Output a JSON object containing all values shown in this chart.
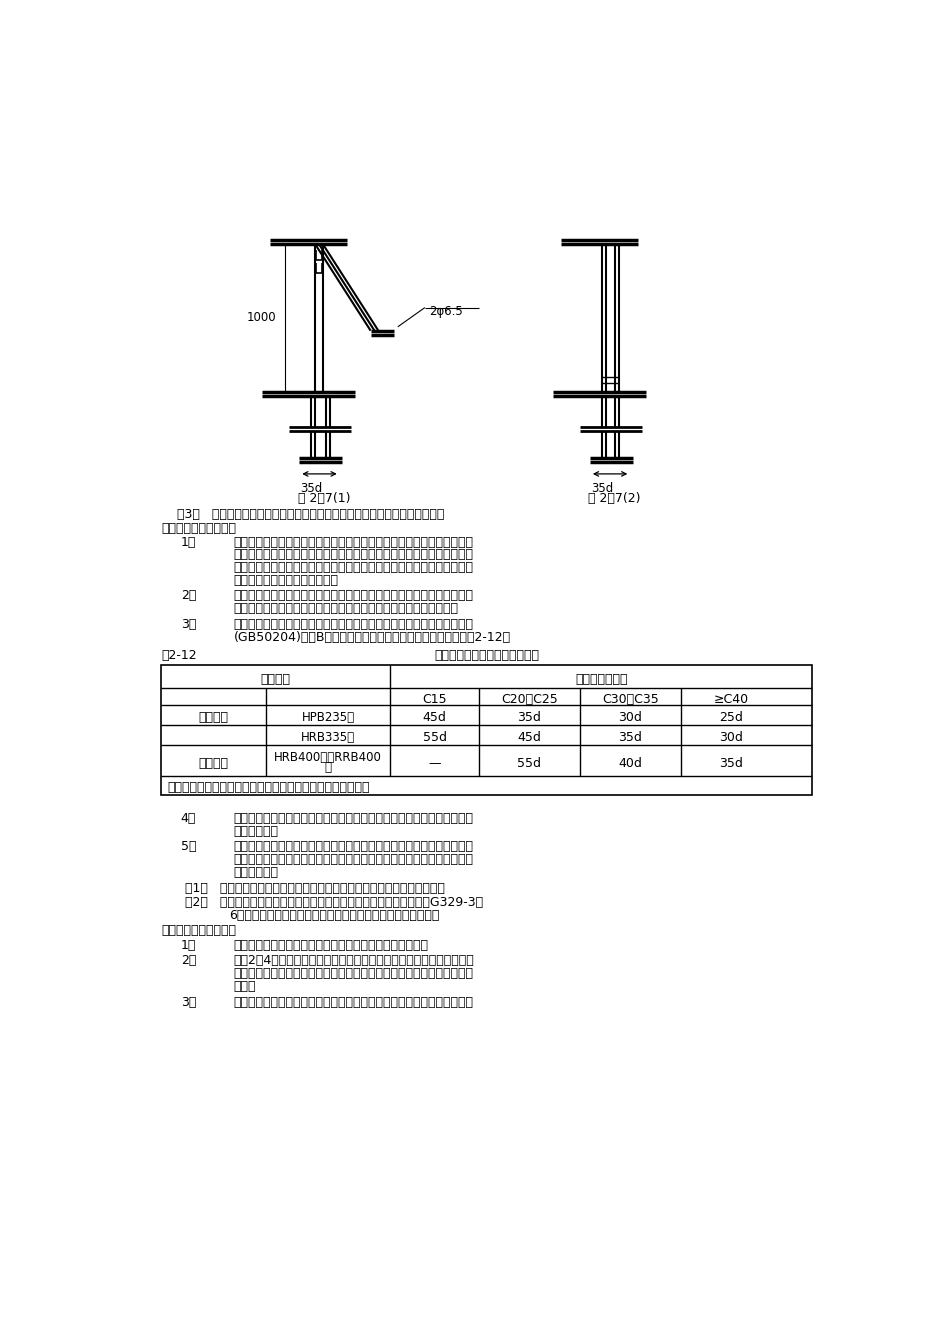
{
  "bg_color": "#ffffff",
  "fig_caption1": "图 2－7(1)",
  "fig_caption2": "图 2－7(2)",
  "label_2phi": "2φ6.5",
  "label_1000": "1000",
  "label_35d_l": "35d",
  "label_35d_r": "35d",
  "table_label": "表2-12",
  "table_title": "纵向受拉钢筋的最小搭接长度表",
  "col_header1": "钢筋类型",
  "col_header2": "混凝土强度等级",
  "sub_c15": "C15",
  "sub_c20": "C20～C25",
  "sub_c30": "C30～C35",
  "sub_c40": "≥C40",
  "row1_cat": "光圆钢筋",
  "row1_sub": "HPB235级",
  "row1_v": [
    "45d",
    "35d",
    "30d",
    "25d"
  ],
  "row2_sub": "HRB335级",
  "row2_v": [
    "55d",
    "45d",
    "35d",
    "30d"
  ],
  "row3_cat": "带肋钢筋",
  "row3_sub": "HRB400级、RRB400\n级",
  "row3_v": [
    "—",
    "55d",
    "40d",
    "35d"
  ],
  "note": "注：两根直径不同钢筋的搭接长度，以较细钢筋的直径计算。",
  "para3": "    （3）   剔完砖墙后，应对构造柱钢筋进行修整，以保证钢筋位置及间距准确。",
  "heading2": "（二）圈梁钢筋的绑扎",
  "p1_num": "1、",
  "p1_lines": [
    "一般采用预制圈梁钢筋骨架，然后按编号吊装就位进行组装后支模板。也",
    "可现场绑扎，后支模板。一般采用硬架支模方法。如在模内绑扎时，按设",
    "计图纸要求间距，在模板侧帮画箍筋位置线。放箍筋后穿受力钢筋。箍筋",
    "搭接处应沿受力钢筋互相错开。"
  ],
  "p2_num": "2、",
  "p2_lines": [
    "圈梁与构造柱钢筋交叉处，圈梁钢筋放在构造柱受力钢筋内侧。圈梁钢筋",
    "在构造柱部位搭接时，其搭接倍数或锚入柱内长度要符合设计要求。"
  ],
  "p3_num": "3、",
  "p3_lines": [
    "圈梁钢筋的搭接长度要符合设计及《混凝土结构工程施工质量验收规范》",
    "(GB50204)附录B中对纵向受力钢筋搭接长度的有关要求，如表2-12。"
  ],
  "p4_num": "4、",
  "p4_lines": [
    "圈梁钢筋应互相交圈，在内墙交接处、墙大角转角处的锚固长度，均要符",
    "合设计要求。"
  ],
  "p5_num": "5、",
  "p5_lines": [
    "楼梯间、附墙烟囱、垃圾道及洞口等部位的圈梁钢筋被切断时，应搭接补",
    "强，构造方法应符合设计要求，标高不同的高低圈梁钢筋，应按设计要求",
    "搭接或连接。"
  ],
  "sub1": "（1）   圈梁钢筋绑扎后，应加钢筋保护层垫块，以控制受力钢筋的保护层。",
  "sub2_line1": "（2）   钢筋下料应严格按照《建筑物抗震构造详图》（砖混结构楼房）G329-3～",
  "sub2_line2": "6图集要求设置；拐角处及丁字墙处附加筋应严格按要求设置。",
  "heading3": "（三）剪力墙钢筋绑扎",
  "q1_num": "1、",
  "q1": "根据墙体弹线，调整下层墙体伸出的墙筋，使其位置正确。",
  "q2_num": "2、",
  "q2_lines": [
    "先立2～4根竖筋，并画好横筋分档标志，然后于下部及齐胸处绑两根横",
    "筋固定好位置，并在横筋上画好分档标志，然后绑其余竖筋，最后绑其余",
    "横筋。"
  ],
  "q3_num": "3、",
  "q3": "双排钢筋之间绑的拉筋，呈梅花型布置，为保证两排钢筋间相对距离，采"
}
